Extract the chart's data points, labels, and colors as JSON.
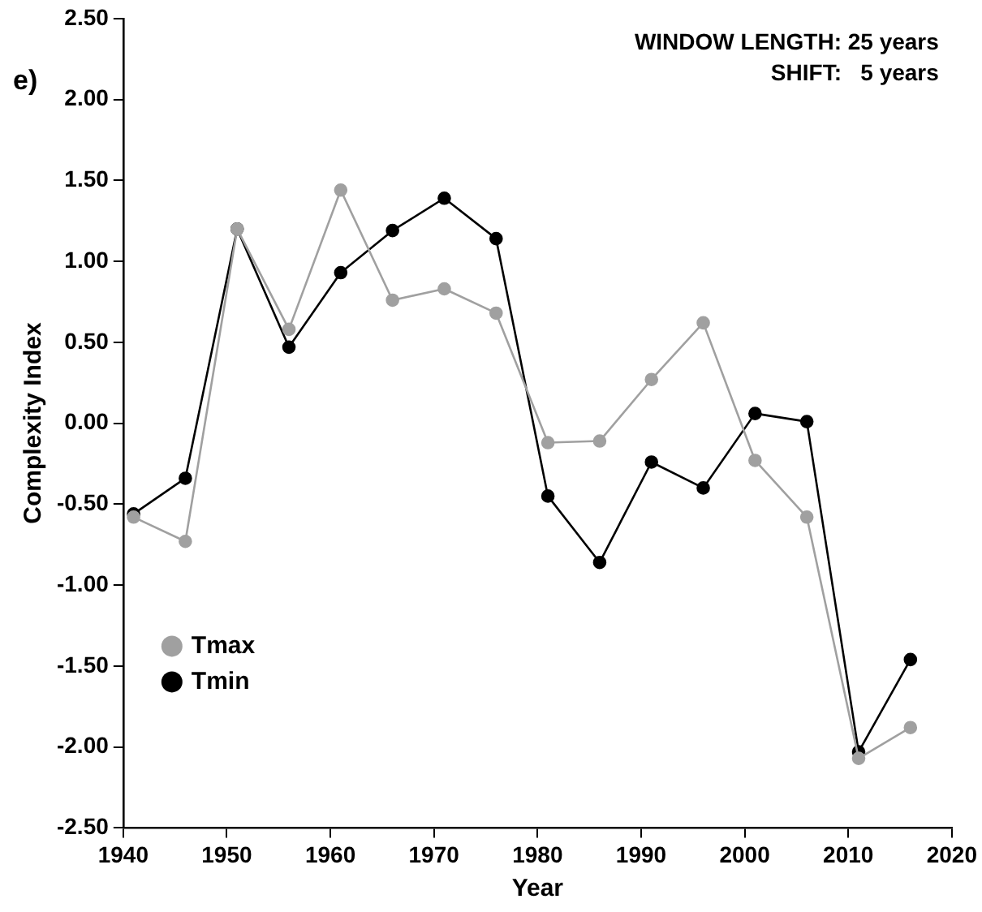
{
  "chart_data": {
    "type": "line",
    "xlabel": "Year",
    "ylabel": "Complexity Index",
    "annotations": [
      "e)",
      "WINDOW LENGTH: 25 years",
      "SHIFT:   5 years"
    ],
    "x": [
      1941,
      1946,
      1951,
      1956,
      1961,
      1966,
      1971,
      1976,
      1981,
      1986,
      1991,
      1996,
      2001,
      2006,
      2011,
      2016
    ],
    "series": [
      {
        "name": "Tmax",
        "color": "#a0a0a0",
        "values": [
          -0.58,
          -0.73,
          1.2,
          0.58,
          1.44,
          0.76,
          0.83,
          0.68,
          -0.12,
          -0.11,
          0.27,
          0.62,
          -0.23,
          -0.58,
          -2.07,
          -1.88
        ]
      },
      {
        "name": "Tmin",
        "color": "#000000",
        "values": [
          -0.56,
          -0.34,
          1.2,
          0.47,
          0.93,
          1.19,
          1.39,
          1.14,
          -0.45,
          -0.86,
          -0.24,
          -0.4,
          0.06,
          0.01,
          -2.03,
          -1.46
        ]
      }
    ],
    "xlim": [
      1940,
      2020
    ],
    "xticks": [
      1940,
      1950,
      1960,
      1970,
      1980,
      1990,
      2000,
      2010,
      2020
    ],
    "ylim": [
      -2.5,
      2.5
    ],
    "yticks": [
      {
        "value": -2.5,
        "label": "-2.50"
      },
      {
        "value": -2,
        "label": "-2.00"
      },
      {
        "value": -1.5,
        "label": "-1.50"
      },
      {
        "value": -1,
        "label": "-1.00"
      },
      {
        "value": -0.5,
        "label": "-0.50"
      },
      {
        "value": 0,
        "label": "0.00"
      },
      {
        "value": 0.5,
        "label": "0.50"
      },
      {
        "value": 1,
        "label": "1.00"
      },
      {
        "value": 1.5,
        "label": "1.50"
      },
      {
        "value": 2,
        "label": "2.00"
      },
      {
        "value": 2.5,
        "label": "2.50"
      }
    ],
    "grid": false,
    "legend": "bottom left",
    "marker": "circle",
    "line_style": "solid"
  }
}
